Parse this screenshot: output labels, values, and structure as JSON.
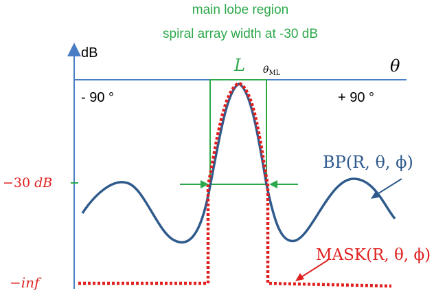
{
  "annotations": {
    "main_lobe_region": "main lobe region",
    "width_label": "spiral array width at -30 dB",
    "width_symbol": "L",
    "theta_ml": "θ",
    "theta_ml_sub": "ML"
  },
  "axes": {
    "y_label": "dB",
    "x_label": "θ",
    "left_limit": "- 90 °",
    "right_limit": "+ 90 °",
    "level_30_num": "−30",
    "level_30_unit": "dB",
    "level_inf": "−inf"
  },
  "curves": {
    "beampattern_label": "BP(R, θ, ϕ)",
    "mask_label": "MASK(R, θ, ϕ)"
  },
  "colors": {
    "axis": "#4a7ec4",
    "green": "#2ca84a",
    "beampattern": "#2f5a8c",
    "mask": "#e02020",
    "text": "#000000"
  }
}
